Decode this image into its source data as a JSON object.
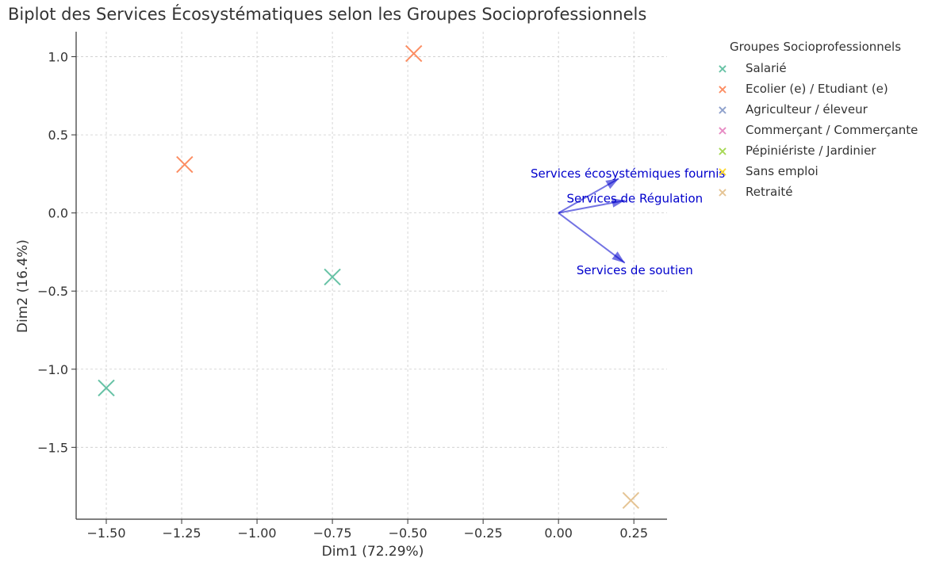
{
  "chart_data": {
    "type": "scatter",
    "title": "Biplot des Services Écosystématiques selon les Groupes Socioprofessionnels",
    "xlabel": "Dim1 (72.29%)",
    "ylabel": "Dim2 (16.4%)",
    "xlim": [
      -1.6,
      0.36
    ],
    "ylim": [
      -1.96,
      1.16
    ],
    "x_ticks": [
      -1.5,
      -1.25,
      -1.0,
      -0.75,
      -0.5,
      -0.25,
      0.0,
      0.25
    ],
    "x_tick_labels": [
      "−1.50",
      "−1.25",
      "−1.00",
      "−0.75",
      "−0.50",
      "−0.25",
      "0.00",
      "0.25"
    ],
    "y_ticks": [
      1.0,
      0.5,
      0.0,
      -0.5,
      -1.0,
      -1.5
    ],
    "y_tick_labels": [
      "1.0",
      "0.5",
      "0.0",
      "−0.5",
      "−1.0",
      "−1.5"
    ],
    "grid": true,
    "legend_position": "top-right-outside",
    "legend_title": "Groupes Socioprofessionnels",
    "series": [
      {
        "name": "Salarié",
        "color": "#66c2a5",
        "points": [
          {
            "x": -0.75,
            "y": -0.41
          },
          {
            "x": -1.5,
            "y": -1.12
          }
        ]
      },
      {
        "name": "Ecolier (e) / Etudiant (e)",
        "color": "#fc8d62",
        "points": [
          {
            "x": -0.48,
            "y": 1.02
          },
          {
            "x": -1.24,
            "y": 0.31
          }
        ]
      },
      {
        "name": "Agriculteur / éleveur",
        "color": "#8da0cb",
        "points": []
      },
      {
        "name": "Commerçant / Commerçante",
        "color": "#e78ac3",
        "points": []
      },
      {
        "name": "Pépiniériste / Jardinier",
        "color": "#a6d854",
        "points": []
      },
      {
        "name": "Sans emploi",
        "color": "#ffd92f",
        "points": []
      },
      {
        "name": "Retraité",
        "color": "#e5c494",
        "points": [
          {
            "x": 0.24,
            "y": -1.84
          }
        ]
      }
    ],
    "arrows": [
      {
        "label": "Services écosystémiques fournis",
        "x": 0.2,
        "y": 0.22
      },
      {
        "label": "Services de Régulation",
        "x": 0.22,
        "y": 0.08
      },
      {
        "label": "Services de soutien",
        "x": 0.22,
        "y": -0.32
      }
    ],
    "arrow_color": "#0000cc"
  }
}
